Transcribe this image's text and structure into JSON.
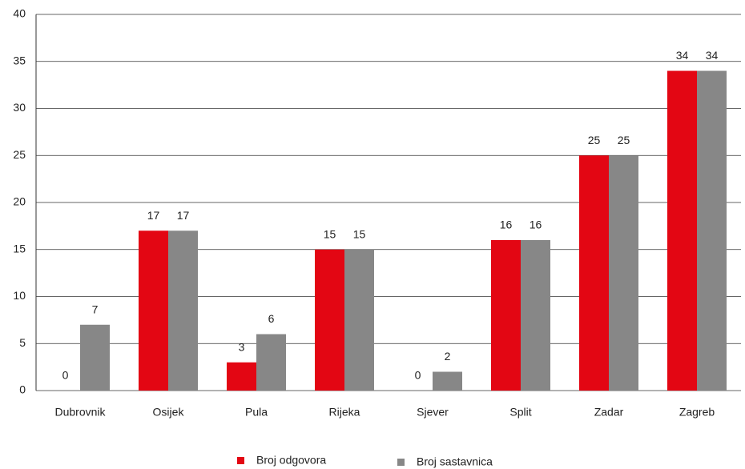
{
  "chart_data": {
    "type": "bar",
    "categories": [
      "Dubrovnik",
      "Osijek",
      "Pula",
      "Rijeka",
      "Sjever",
      "Split",
      "Zadar",
      "Zagreb"
    ],
    "series": [
      {
        "name": "Broj odgovora",
        "color": "#e30613",
        "values": [
          0,
          17,
          3,
          15,
          0,
          16,
          25,
          34
        ]
      },
      {
        "name": "Broj sastavnica",
        "color": "#878787",
        "values": [
          7,
          17,
          6,
          15,
          2,
          16,
          25,
          34
        ]
      }
    ],
    "ylim": [
      0,
      40
    ],
    "yticks": [
      0,
      5,
      10,
      15,
      20,
      25,
      30,
      35,
      40
    ],
    "grid": true
  }
}
